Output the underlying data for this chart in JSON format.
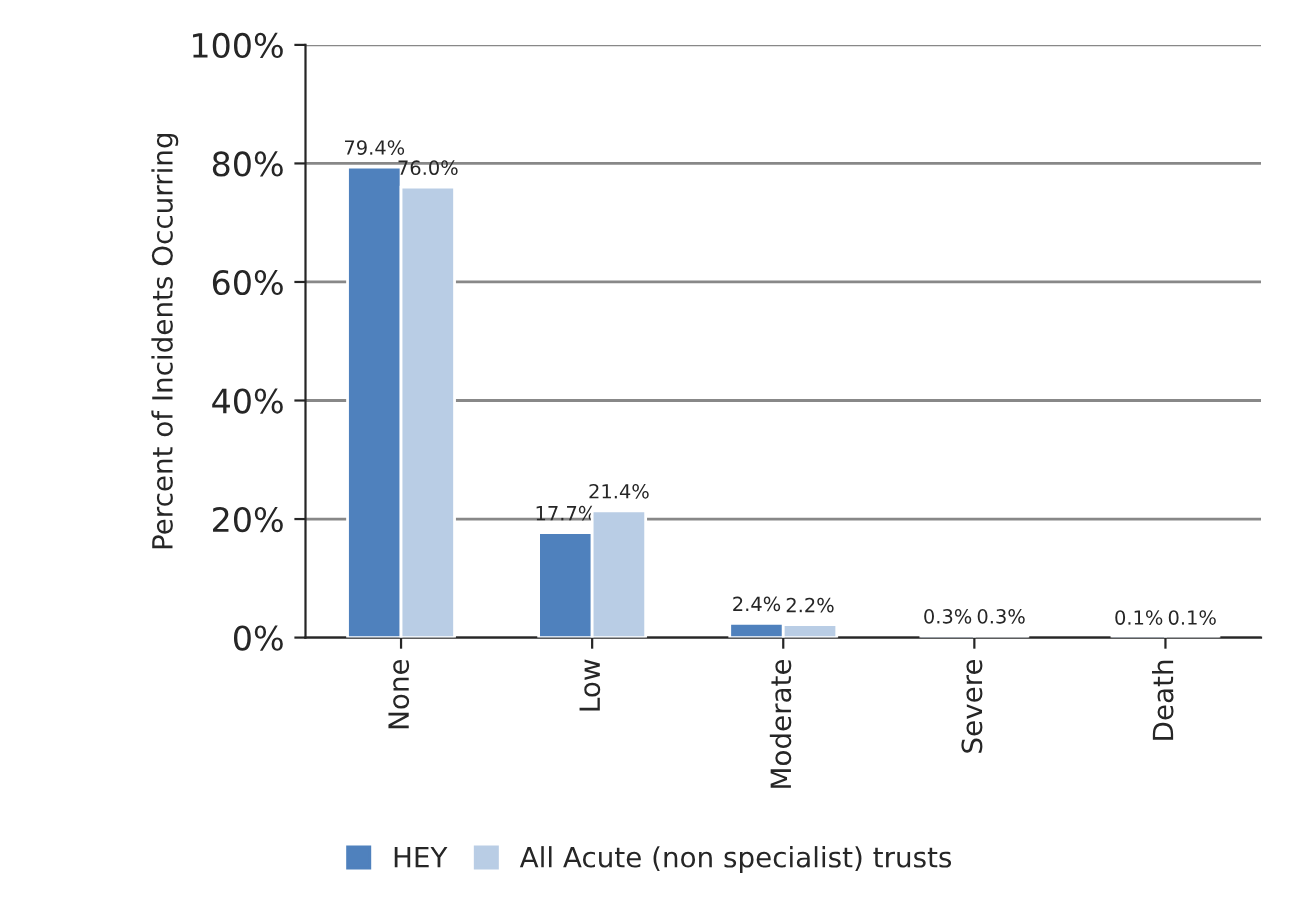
{
  "chart_data": {
    "type": "bar",
    "ylabel": "Percent of Incidents Occurring",
    "categories": [
      "None",
      "Low",
      "Moderate",
      "Severe",
      "Death"
    ],
    "series": [
      {
        "name": "HEY",
        "color": "#4f81bd",
        "values": [
          79.4,
          17.7,
          2.4,
          0.3,
          0.1
        ],
        "value_labels": [
          "79.4%",
          "17.7%",
          "2.4%",
          "0.3%",
          "0.1%"
        ]
      },
      {
        "name": "All Acute (non specialist) trusts",
        "color": "#b9cde5",
        "values": [
          76.0,
          21.4,
          2.2,
          0.3,
          0.1
        ],
        "value_labels": [
          "76.0%",
          "21.4%",
          "2.2%",
          "0.3%",
          "0.1%"
        ]
      }
    ],
    "ylim": [
      0,
      100
    ],
    "yticks": [
      {
        "value": 0,
        "label": "0%"
      },
      {
        "value": 20,
        "label": "20%"
      },
      {
        "value": 40,
        "label": "40%"
      },
      {
        "value": 60,
        "label": "60%"
      },
      {
        "value": 80,
        "label": "80%"
      },
      {
        "value": 100,
        "label": "100%"
      }
    ],
    "grid": "y",
    "legend": "bottom"
  }
}
